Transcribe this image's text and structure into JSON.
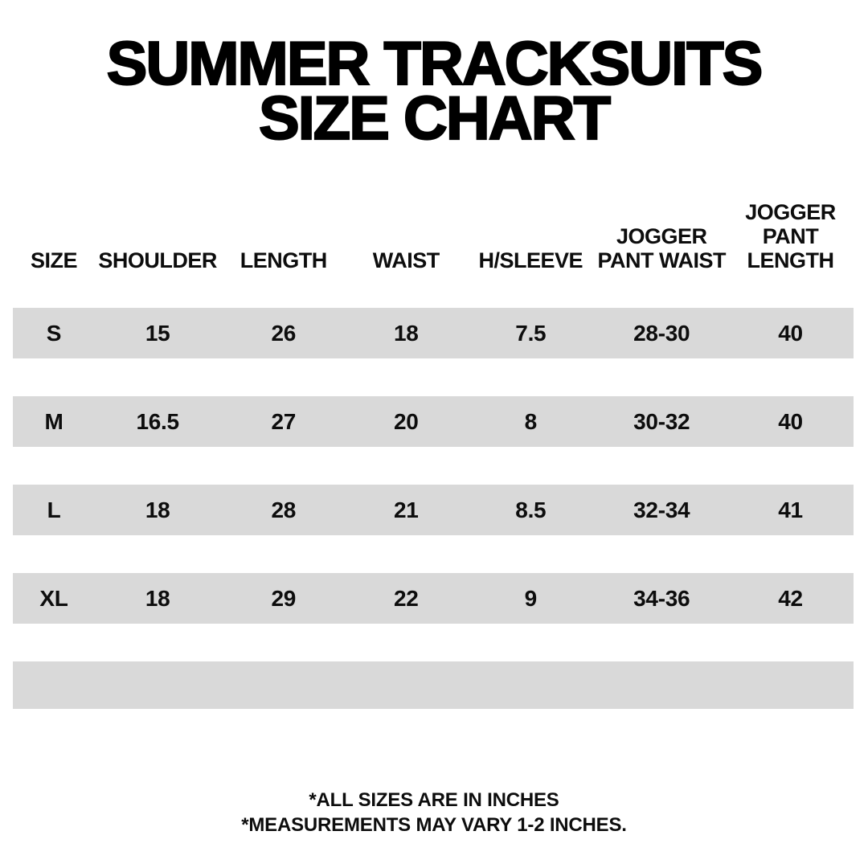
{
  "title": {
    "line1": "SUMMER TRACKSUITS",
    "line2": "SIZE CHART"
  },
  "chart_data": {
    "type": "table",
    "title": "SUMMER TRACKSUITS SIZE CHART",
    "columns": [
      "SIZE",
      "SHOULDER",
      "LENGTH",
      "WAIST",
      "H/SLEEVE",
      "JOGGER PANT WAIST",
      "JOGGER PANT LENGTH"
    ],
    "rows": [
      [
        "S",
        "15",
        "26",
        "18",
        "7.5",
        "28-30",
        "40"
      ],
      [
        "M",
        "16.5",
        "27",
        "20",
        "8",
        "30-32",
        "40"
      ],
      [
        "L",
        "18",
        "28",
        "21",
        "8.5",
        "32-34",
        "41"
      ],
      [
        "XL",
        "18",
        "29",
        "22",
        "9",
        "34-36",
        "42"
      ]
    ],
    "notes": [
      "*ALL SIZES ARE IN INCHES",
      "*MEASUREMENTS MAY VARY 1-2 INCHES."
    ],
    "units": "inches",
    "layout_hints": {
      "striped_rows": true,
      "stripe_color": "#d9d9d9",
      "empty_bottom_stripe": true
    }
  },
  "colors": {
    "background": "#ffffff",
    "stripe": "#d9d9d9",
    "text": "#0d0d0d",
    "title": "#000000"
  }
}
